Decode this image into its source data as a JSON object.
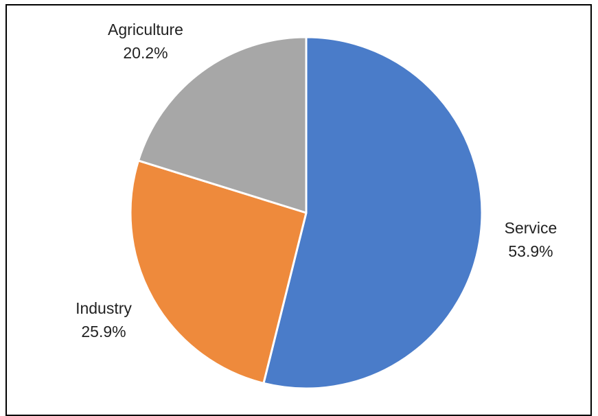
{
  "chart_data": {
    "type": "pie",
    "slices": [
      {
        "label": "Service",
        "value": 53.9,
        "value_label": "53.9%",
        "color": "#4a7cc9"
      },
      {
        "label": "Industry",
        "value": 25.9,
        "value_label": "25.9%",
        "color": "#ee8a3c"
      },
      {
        "label": "Agriculture",
        "value": 20.2,
        "value_label": "20.2%",
        "color": "#a7a7a7"
      }
    ],
    "start": "12 o'clock",
    "direction": "clockwise",
    "legend": "none",
    "data_labels": "outside"
  }
}
